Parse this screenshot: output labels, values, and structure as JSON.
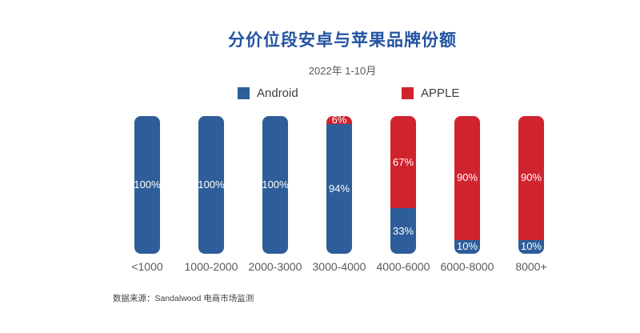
{
  "header": {
    "title": "分价位段安卓与苹果品牌份额",
    "subtitle": "2022年 1-10月"
  },
  "legend": [
    {
      "label": "Android",
      "color": "#2E5E99"
    },
    {
      "label": "APPLE",
      "color": "#CF232E"
    }
  ],
  "footer": {
    "source": "数据来源：Sandalwood 电商市场监测"
  },
  "colors": {
    "title_blue": "#2354A0",
    "android_blue": "#2E5E99",
    "apple_red": "#CF232E",
    "axis_gray": "#595959",
    "label_white": "#ffffff"
  },
  "chart_data": {
    "type": "bar",
    "stacked": true,
    "unit": "percent",
    "title": "分价位段安卓与苹果品牌份额",
    "subtitle": "2022年 1-10月",
    "categories": [
      "<1000",
      "1000-2000",
      "2000-3000",
      "3000-4000",
      "4000-6000",
      "6000-8000",
      "8000+"
    ],
    "series": [
      {
        "name": "Android",
        "color": "#2E5E99",
        "values": [
          100,
          100,
          100,
          94,
          33,
          10,
          10
        ]
      },
      {
        "name": "APPLE",
        "color": "#CF232E",
        "values": [
          0,
          0,
          0,
          6,
          67,
          90,
          90
        ]
      }
    ],
    "ylim": [
      0,
      100
    ],
    "grid": false,
    "legend_position": "top",
    "bar_labels": "inside-segment, white",
    "xlabel": "",
    "ylabel": ""
  }
}
